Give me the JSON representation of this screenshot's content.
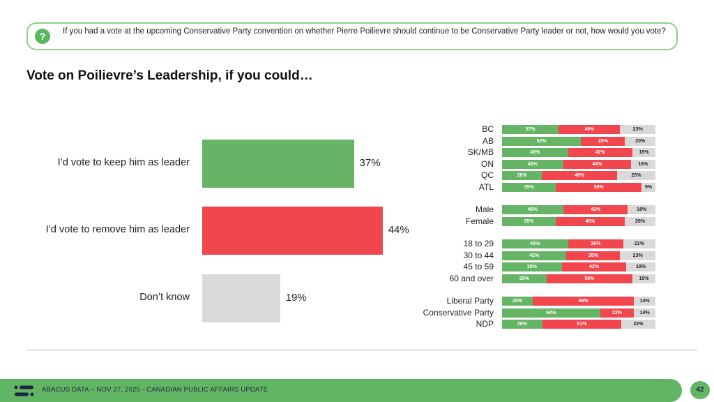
{
  "question": "If you had a vote at the upcoming Conservative Party convention on whether Pierre Poilievre should continue to be Conservative Party leader or not, how would you vote?",
  "question_icon": "?",
  "colors": {
    "keep": "#66b566",
    "remove": "#f2464f",
    "dont_know": "#d9d9d9"
  },
  "chart_data": [
    {
      "type": "bar",
      "orientation": "horizontal",
      "title": "Vote on Poilievre’s Leadership, if you could…",
      "categories": [
        "I’d vote to keep him as leader",
        "I’d vote to remove him as leader",
        "Don’t know"
      ],
      "values": [
        37,
        44,
        19
      ],
      "value_labels": [
        "37%",
        "44%",
        "19%"
      ]
    },
    {
      "type": "bar",
      "orientation": "horizontal",
      "stacked": true,
      "series_names": [
        "Keep",
        "Remove",
        "Don't know"
      ],
      "groups": [
        {
          "rows": [
            {
              "label": "BC",
              "values": [
                37,
                40,
                23
              ]
            },
            {
              "label": "AB",
              "values": [
                52,
                29,
                20
              ]
            },
            {
              "label": "SK/MB",
              "values": [
                43,
                42,
                15
              ]
            },
            {
              "label": "ON",
              "values": [
                40,
                44,
                16
              ]
            },
            {
              "label": "QC",
              "values": [
                26,
                49,
                25
              ]
            },
            {
              "label": "ATL",
              "values": [
                35,
                56,
                9
              ]
            }
          ]
        },
        {
          "rows": [
            {
              "label": "Male",
              "values": [
                40,
                42,
                18
              ]
            },
            {
              "label": "Female",
              "values": [
                35,
                45,
                20
              ]
            }
          ]
        },
        {
          "rows": [
            {
              "label": "18 to 29",
              "values": [
                43,
                36,
                21
              ]
            },
            {
              "label": "30 to 44",
              "values": [
                42,
                35,
                23
              ]
            },
            {
              "label": "45 to 59",
              "values": [
                39,
                42,
                19
              ]
            },
            {
              "label": "60 and over",
              "values": [
                29,
                56,
                15
              ]
            }
          ]
        },
        {
          "rows": [
            {
              "label": "Liberal Party",
              "values": [
                20,
                66,
                14
              ]
            },
            {
              "label": "Conservative Party",
              "values": [
                64,
                22,
                14
              ]
            },
            {
              "label": "NDP",
              "values": [
                26,
                51,
                22
              ]
            }
          ]
        }
      ]
    }
  ],
  "footer": {
    "text": "ABACUS DATA  – NOV 27, 2025 - CANADIAN PUBLIC AFFAIRS UPDATE",
    "page": "42"
  }
}
